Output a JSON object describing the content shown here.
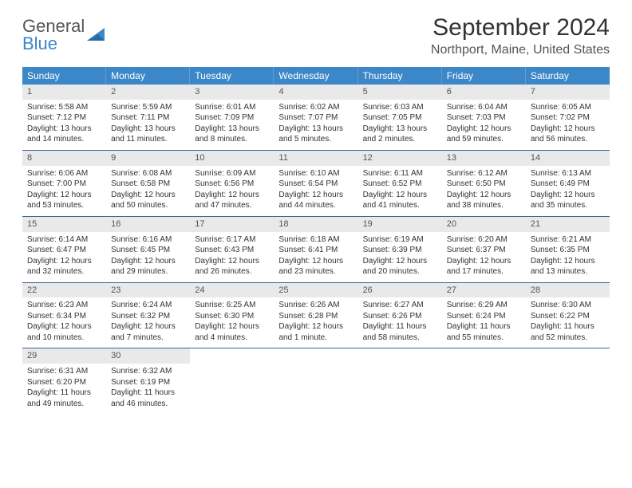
{
  "brand": {
    "name_a": "General",
    "name_b": "Blue"
  },
  "title": "September 2024",
  "location": "Northport, Maine, United States",
  "colors": {
    "header_bg": "#3b87c8",
    "row_border": "#3b6a96",
    "daynum_bg": "#e9e9e9",
    "text": "#333333",
    "muted": "#555555"
  },
  "fonts": {
    "title_size": 30,
    "location_size": 16,
    "dayheader_size": 12,
    "body_size": 10
  },
  "day_headers": [
    "Sunday",
    "Monday",
    "Tuesday",
    "Wednesday",
    "Thursday",
    "Friday",
    "Saturday"
  ],
  "weeks": [
    [
      {
        "n": "1",
        "sr": "Sunrise: 5:58 AM",
        "ss": "Sunset: 7:12 PM",
        "dl": "Daylight: 13 hours and 14 minutes."
      },
      {
        "n": "2",
        "sr": "Sunrise: 5:59 AM",
        "ss": "Sunset: 7:11 PM",
        "dl": "Daylight: 13 hours and 11 minutes."
      },
      {
        "n": "3",
        "sr": "Sunrise: 6:01 AM",
        "ss": "Sunset: 7:09 PM",
        "dl": "Daylight: 13 hours and 8 minutes."
      },
      {
        "n": "4",
        "sr": "Sunrise: 6:02 AM",
        "ss": "Sunset: 7:07 PM",
        "dl": "Daylight: 13 hours and 5 minutes."
      },
      {
        "n": "5",
        "sr": "Sunrise: 6:03 AM",
        "ss": "Sunset: 7:05 PM",
        "dl": "Daylight: 13 hours and 2 minutes."
      },
      {
        "n": "6",
        "sr": "Sunrise: 6:04 AM",
        "ss": "Sunset: 7:03 PM",
        "dl": "Daylight: 12 hours and 59 minutes."
      },
      {
        "n": "7",
        "sr": "Sunrise: 6:05 AM",
        "ss": "Sunset: 7:02 PM",
        "dl": "Daylight: 12 hours and 56 minutes."
      }
    ],
    [
      {
        "n": "8",
        "sr": "Sunrise: 6:06 AM",
        "ss": "Sunset: 7:00 PM",
        "dl": "Daylight: 12 hours and 53 minutes."
      },
      {
        "n": "9",
        "sr": "Sunrise: 6:08 AM",
        "ss": "Sunset: 6:58 PM",
        "dl": "Daylight: 12 hours and 50 minutes."
      },
      {
        "n": "10",
        "sr": "Sunrise: 6:09 AM",
        "ss": "Sunset: 6:56 PM",
        "dl": "Daylight: 12 hours and 47 minutes."
      },
      {
        "n": "11",
        "sr": "Sunrise: 6:10 AM",
        "ss": "Sunset: 6:54 PM",
        "dl": "Daylight: 12 hours and 44 minutes."
      },
      {
        "n": "12",
        "sr": "Sunrise: 6:11 AM",
        "ss": "Sunset: 6:52 PM",
        "dl": "Daylight: 12 hours and 41 minutes."
      },
      {
        "n": "13",
        "sr": "Sunrise: 6:12 AM",
        "ss": "Sunset: 6:50 PM",
        "dl": "Daylight: 12 hours and 38 minutes."
      },
      {
        "n": "14",
        "sr": "Sunrise: 6:13 AM",
        "ss": "Sunset: 6:49 PM",
        "dl": "Daylight: 12 hours and 35 minutes."
      }
    ],
    [
      {
        "n": "15",
        "sr": "Sunrise: 6:14 AM",
        "ss": "Sunset: 6:47 PM",
        "dl": "Daylight: 12 hours and 32 minutes."
      },
      {
        "n": "16",
        "sr": "Sunrise: 6:16 AM",
        "ss": "Sunset: 6:45 PM",
        "dl": "Daylight: 12 hours and 29 minutes."
      },
      {
        "n": "17",
        "sr": "Sunrise: 6:17 AM",
        "ss": "Sunset: 6:43 PM",
        "dl": "Daylight: 12 hours and 26 minutes."
      },
      {
        "n": "18",
        "sr": "Sunrise: 6:18 AM",
        "ss": "Sunset: 6:41 PM",
        "dl": "Daylight: 12 hours and 23 minutes."
      },
      {
        "n": "19",
        "sr": "Sunrise: 6:19 AM",
        "ss": "Sunset: 6:39 PM",
        "dl": "Daylight: 12 hours and 20 minutes."
      },
      {
        "n": "20",
        "sr": "Sunrise: 6:20 AM",
        "ss": "Sunset: 6:37 PM",
        "dl": "Daylight: 12 hours and 17 minutes."
      },
      {
        "n": "21",
        "sr": "Sunrise: 6:21 AM",
        "ss": "Sunset: 6:35 PM",
        "dl": "Daylight: 12 hours and 13 minutes."
      }
    ],
    [
      {
        "n": "22",
        "sr": "Sunrise: 6:23 AM",
        "ss": "Sunset: 6:34 PM",
        "dl": "Daylight: 12 hours and 10 minutes."
      },
      {
        "n": "23",
        "sr": "Sunrise: 6:24 AM",
        "ss": "Sunset: 6:32 PM",
        "dl": "Daylight: 12 hours and 7 minutes."
      },
      {
        "n": "24",
        "sr": "Sunrise: 6:25 AM",
        "ss": "Sunset: 6:30 PM",
        "dl": "Daylight: 12 hours and 4 minutes."
      },
      {
        "n": "25",
        "sr": "Sunrise: 6:26 AM",
        "ss": "Sunset: 6:28 PM",
        "dl": "Daylight: 12 hours and 1 minute."
      },
      {
        "n": "26",
        "sr": "Sunrise: 6:27 AM",
        "ss": "Sunset: 6:26 PM",
        "dl": "Daylight: 11 hours and 58 minutes."
      },
      {
        "n": "27",
        "sr": "Sunrise: 6:29 AM",
        "ss": "Sunset: 6:24 PM",
        "dl": "Daylight: 11 hours and 55 minutes."
      },
      {
        "n": "28",
        "sr": "Sunrise: 6:30 AM",
        "ss": "Sunset: 6:22 PM",
        "dl": "Daylight: 11 hours and 52 minutes."
      }
    ],
    [
      {
        "n": "29",
        "sr": "Sunrise: 6:31 AM",
        "ss": "Sunset: 6:20 PM",
        "dl": "Daylight: 11 hours and 49 minutes."
      },
      {
        "n": "30",
        "sr": "Sunrise: 6:32 AM",
        "ss": "Sunset: 6:19 PM",
        "dl": "Daylight: 11 hours and 46 minutes."
      },
      null,
      null,
      null,
      null,
      null
    ]
  ]
}
